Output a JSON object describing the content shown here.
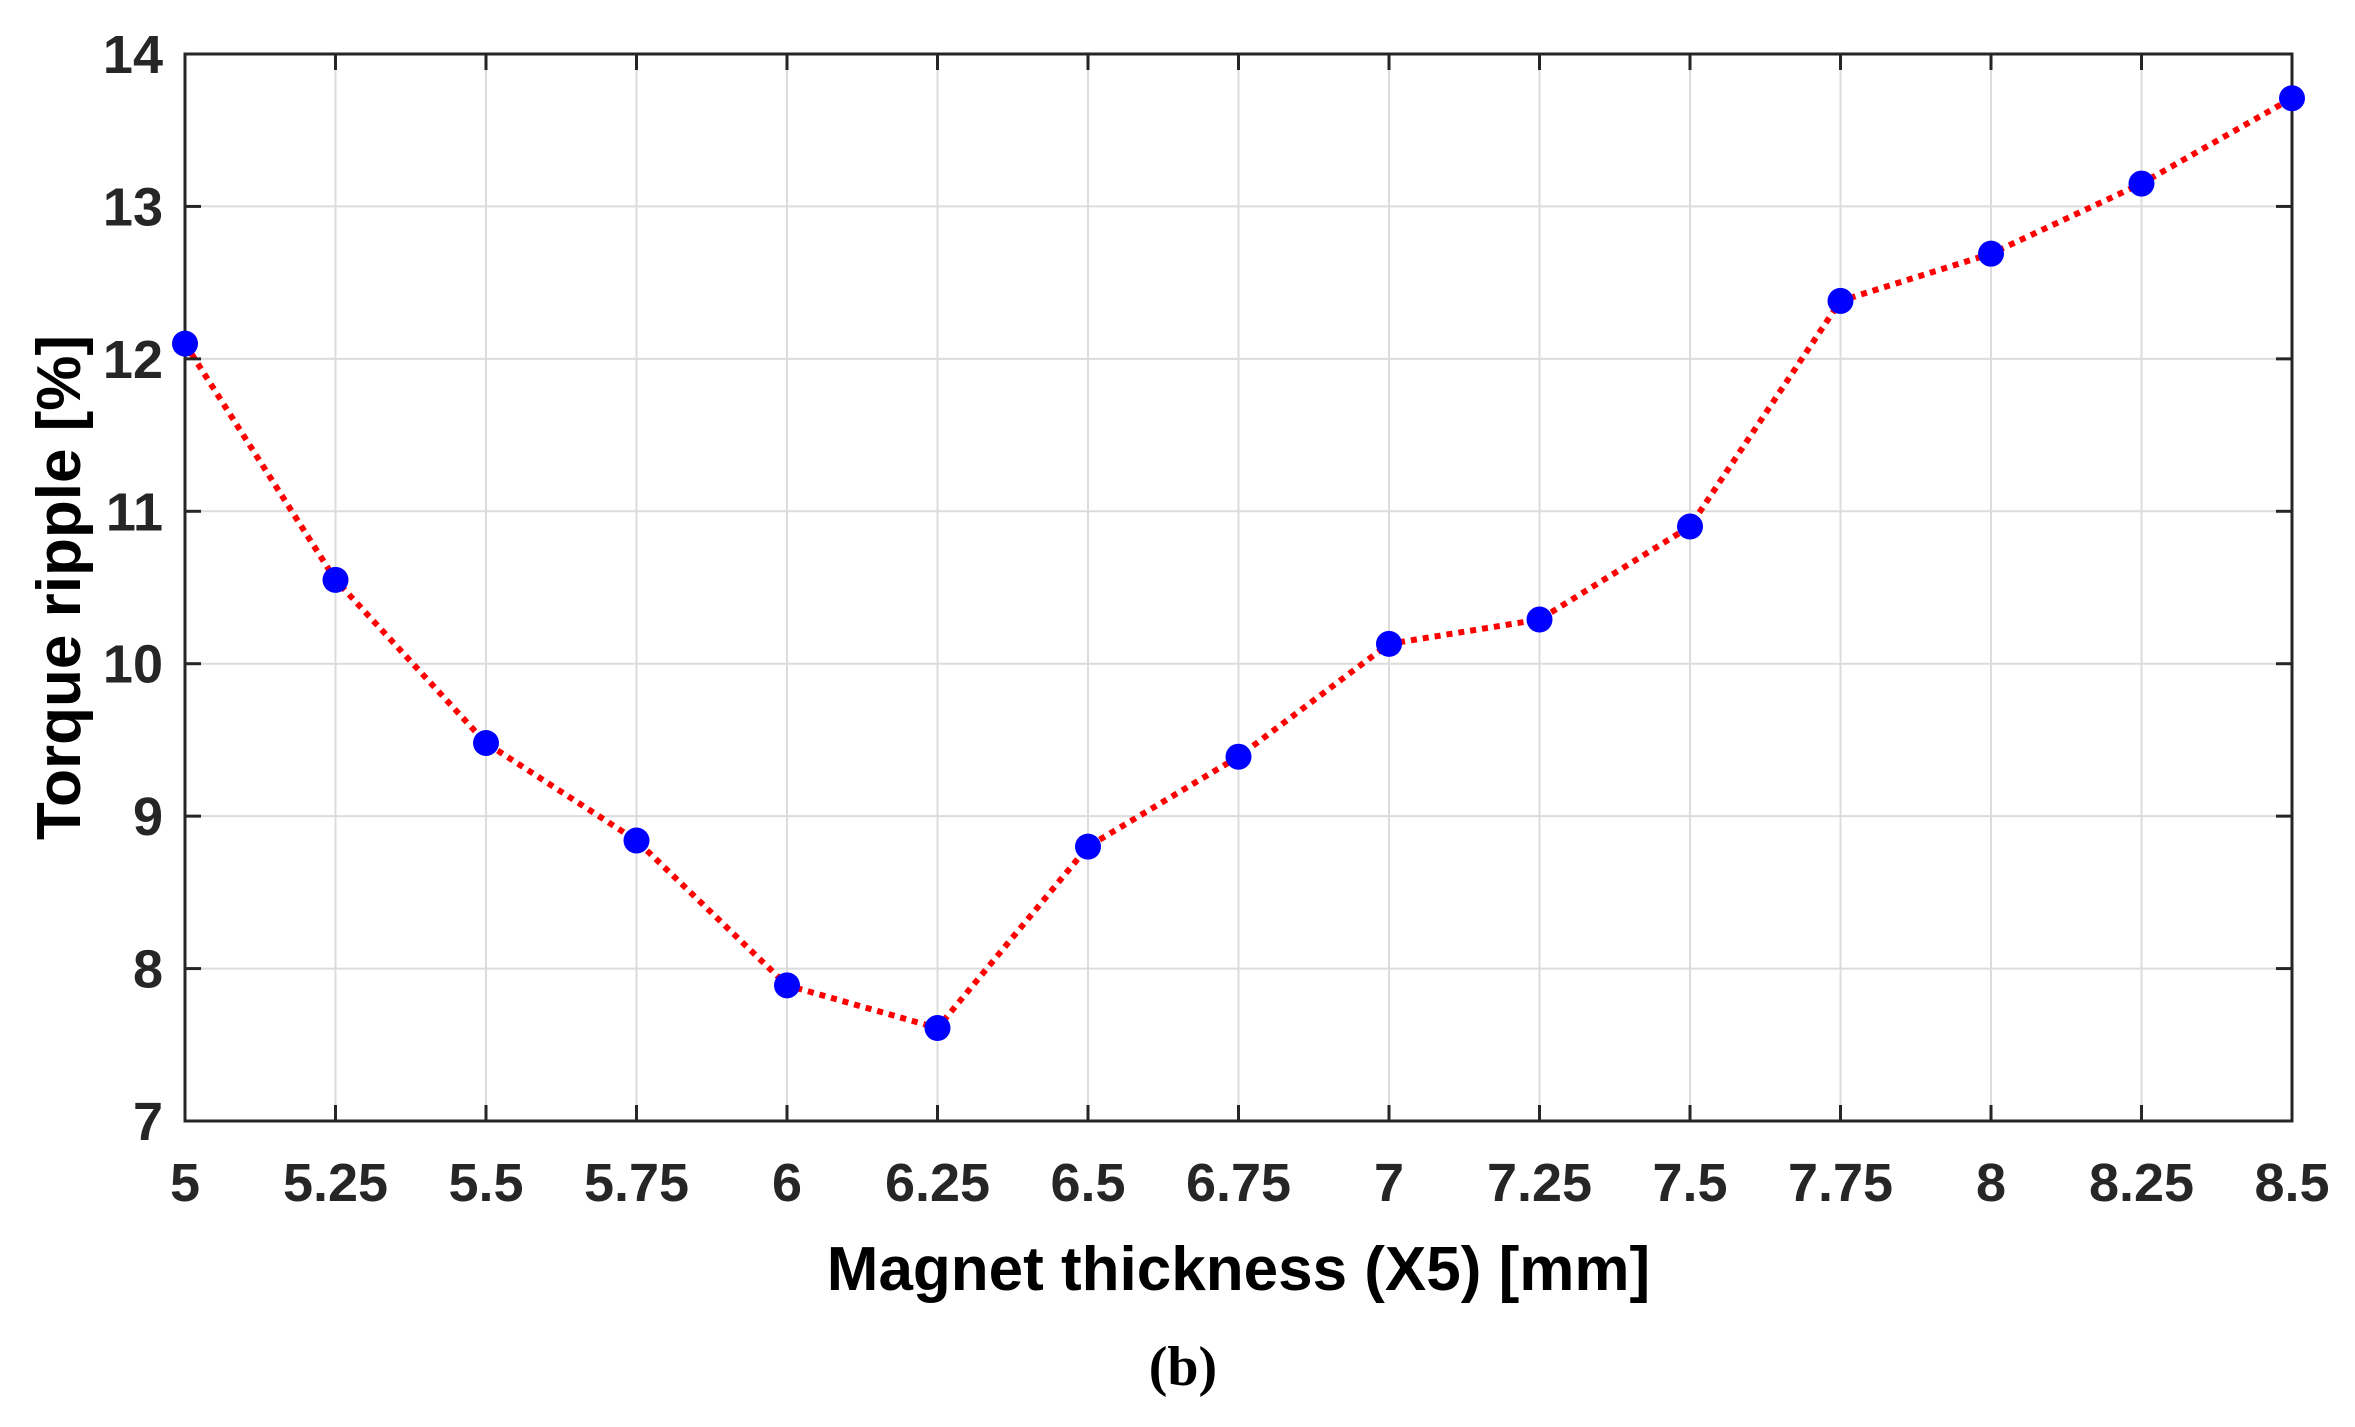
{
  "caption": "(b)",
  "colors": {
    "line": "#ff0000",
    "marker": "#0000ff",
    "grid": "#dcdcdc",
    "axis": "#262626"
  },
  "chart_data": {
    "type": "line",
    "title": "",
    "xlabel": "Magnet thickness (X5)  [mm]",
    "ylabel": "Torque ripple [%]",
    "xlim": [
      5,
      8.5
    ],
    "ylim": [
      7,
      14
    ],
    "x_ticks": [
      "5",
      "5.25",
      "5.5",
      "5.75",
      "6",
      "6.25",
      "6.5",
      "6.75",
      "7",
      "7.25",
      "7.5",
      "7.75",
      "8",
      "8.25",
      "8.5"
    ],
    "y_ticks": [
      "7",
      "8",
      "9",
      "10",
      "11",
      "12",
      "13",
      "14"
    ],
    "grid": true,
    "line_style": "dotted",
    "marker": "filled-circle",
    "series": [
      {
        "x": [
          5,
          5.25,
          5.5,
          5.75,
          6,
          6.25,
          6.5,
          6.75,
          7,
          7.25,
          7.5,
          7.75,
          8,
          8.25,
          8.5
        ],
        "y": [
          12.1,
          10.55,
          9.48,
          8.84,
          7.89,
          7.61,
          8.8,
          9.39,
          10.13,
          10.29,
          10.9,
          12.38,
          12.69,
          13.15,
          13.71
        ]
      }
    ]
  }
}
